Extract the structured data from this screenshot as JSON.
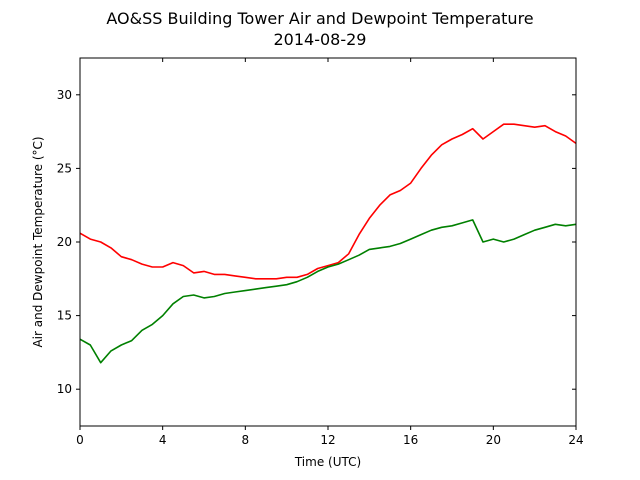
{
  "chart_data": {
    "type": "line",
    "title": "AO&SS Building Tower Air and Dewpoint Temperature",
    "subtitle": "2014-08-29",
    "xlabel": "Time (UTC)",
    "ylabel": "Air and Dewpoint Temperature (°C)",
    "xlim": [
      0,
      24
    ],
    "ylim": [
      7.5,
      32.5
    ],
    "xticks": [
      0,
      4,
      8,
      12,
      16,
      20,
      24
    ],
    "yticks": [
      10,
      15,
      20,
      25,
      30
    ],
    "grid": false,
    "legend": "none",
    "series": [
      {
        "color": "#ff0000",
        "x": [
          0,
          0.5,
          1,
          1.5,
          2,
          2.5,
          3,
          3.5,
          4,
          4.5,
          5,
          5.5,
          6,
          6.5,
          7,
          7.5,
          8,
          8.5,
          9,
          9.5,
          10,
          10.5,
          11,
          11.5,
          12,
          12.5,
          13,
          13.5,
          14,
          14.5,
          15,
          15.5,
          16,
          16.5,
          17,
          17.5,
          18,
          18.5,
          19,
          19.5,
          20,
          20.5,
          21,
          21.5,
          22,
          22.5,
          23,
          23.5,
          24
        ],
        "values": [
          20.6,
          20.2,
          20.0,
          19.6,
          19.0,
          18.8,
          18.5,
          18.3,
          18.3,
          18.6,
          18.4,
          17.9,
          18.0,
          17.8,
          17.8,
          17.7,
          17.6,
          17.5,
          17.5,
          17.5,
          17.6,
          17.6,
          17.8,
          18.2,
          18.4,
          18.6,
          19.2,
          20.5,
          21.6,
          22.5,
          23.2,
          23.5,
          24.0,
          25.0,
          25.9,
          26.6,
          27.0,
          27.3,
          27.7,
          27.0,
          27.5,
          28.0,
          28.0,
          27.9,
          27.8,
          27.9,
          27.5,
          27.2,
          26.7
        ]
      },
      {
        "color": "#008000",
        "x": [
          0,
          0.5,
          1,
          1.5,
          2,
          2.5,
          3,
          3.5,
          4,
          4.5,
          5,
          5.5,
          6,
          6.5,
          7,
          7.5,
          8,
          8.5,
          9,
          9.5,
          10,
          10.5,
          11,
          11.5,
          12,
          12.5,
          13,
          13.5,
          14,
          14.5,
          15,
          15.5,
          16,
          16.5,
          17,
          17.5,
          18,
          18.5,
          19,
          19.5,
          20,
          20.5,
          21,
          21.5,
          22,
          22.5,
          23,
          23.5,
          24
        ],
        "values": [
          13.4,
          13.0,
          11.8,
          12.6,
          13.0,
          13.3,
          14.0,
          14.4,
          15.0,
          15.8,
          16.3,
          16.4,
          16.2,
          16.3,
          16.5,
          16.6,
          16.7,
          16.8,
          16.9,
          17.0,
          17.1,
          17.3,
          17.6,
          18.0,
          18.3,
          18.5,
          18.8,
          19.1,
          19.5,
          19.6,
          19.7,
          19.9,
          20.2,
          20.5,
          20.8,
          21.0,
          21.1,
          21.3,
          21.5,
          20.0,
          20.2,
          20.0,
          20.2,
          20.5,
          20.8,
          21.0,
          21.2,
          21.1,
          21.2
        ]
      }
    ]
  }
}
